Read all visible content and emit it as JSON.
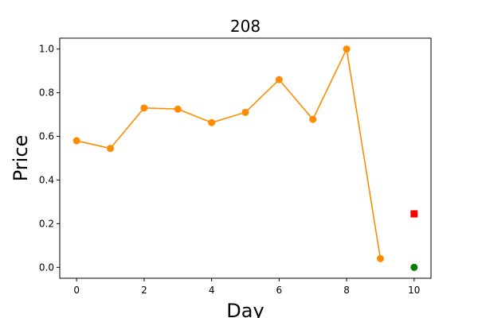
{
  "chart_data": {
    "type": "line",
    "title": "208",
    "xlabel": "Day",
    "ylabel": "Price",
    "xlim": [
      -0.5,
      10.5
    ],
    "ylim": [
      -0.05,
      1.05
    ],
    "xticks": [
      0,
      2,
      4,
      6,
      8,
      10
    ],
    "yticks": [
      0.0,
      0.2,
      0.4,
      0.6,
      0.8,
      1.0
    ],
    "xtick_labels": [
      "0",
      "2",
      "4",
      "6",
      "8",
      "10"
    ],
    "ytick_labels": [
      "0.0",
      "0.2",
      "0.4",
      "0.6",
      "0.8",
      "1.0"
    ],
    "grid": false,
    "series": [
      {
        "marker": "circle",
        "color": "#ff8c00",
        "x": [
          0,
          1,
          2,
          3,
          4,
          5,
          6,
          7,
          8,
          9
        ],
        "y": [
          0.58,
          0.545,
          0.73,
          0.725,
          0.663,
          0.71,
          0.86,
          0.678,
          1.0,
          0.04
        ]
      },
      {
        "marker": "square",
        "color": "#ff0000",
        "x": [
          10
        ],
        "y": [
          0.245
        ]
      },
      {
        "marker": "circle",
        "color": "#008000",
        "x": [
          10
        ],
        "y": [
          0.0
        ]
      }
    ]
  }
}
